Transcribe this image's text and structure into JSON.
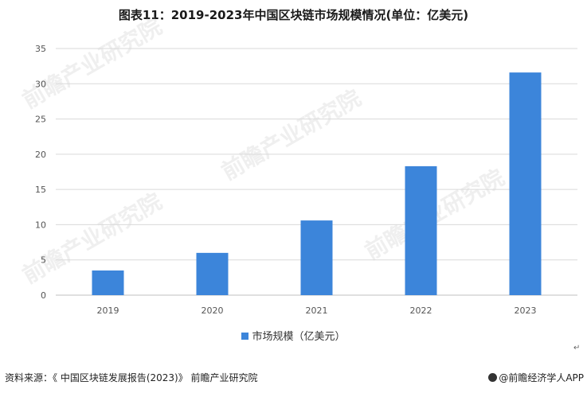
{
  "title": "图表11：2019-2023年中国区块链市场规模情况(单位：亿美元)",
  "source": "资料来源：《 中国区块链发展报告(2023)》 前瞻产业研究院",
  "brand": "@前瞻经济学人APP",
  "watermark": "前瞻产业研究院",
  "colors": {
    "bar": "#3c85da",
    "grid": "#d9d9d9",
    "axis": "#bfbfbf"
  },
  "chart_data": {
    "type": "bar",
    "categories": [
      "2019",
      "2020",
      "2021",
      "2022",
      "2023"
    ],
    "series": [
      {
        "name": "市场规模（亿美元）",
        "values": [
          3.5,
          6.0,
          10.6,
          18.3,
          31.6
        ]
      }
    ],
    "ylim": [
      0,
      35
    ],
    "yticks": [
      0,
      5,
      10,
      15,
      20,
      25,
      30,
      35
    ],
    "grid": true,
    "legend_position": "bottom-center"
  }
}
